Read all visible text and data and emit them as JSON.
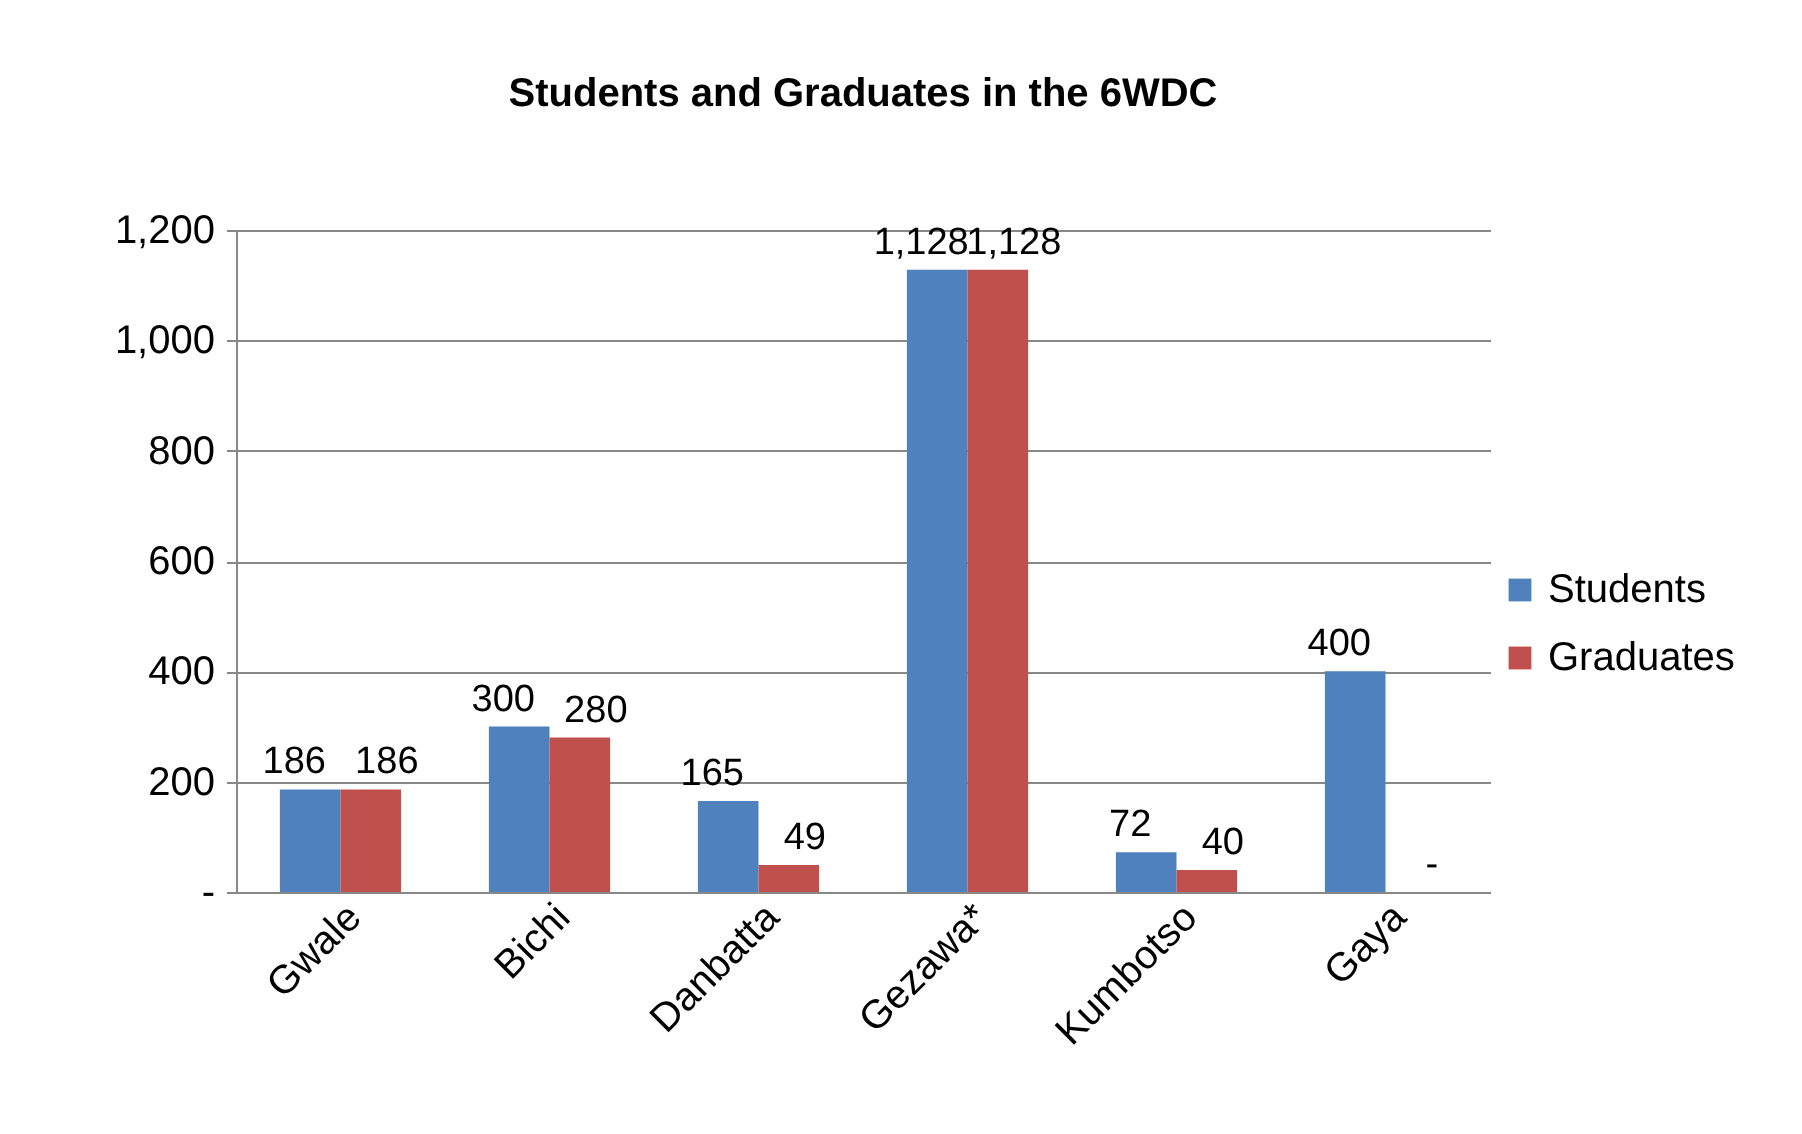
{
  "chart_data": {
    "type": "bar",
    "title": "Students and Graduates in the 6WDC",
    "categories": [
      "Gwale",
      "Bichi",
      "Danbatta",
      "Gezawa*",
      "Kumbotso",
      "Gaya"
    ],
    "series": [
      {
        "name": "Students",
        "color": "#4f81bd",
        "values": [
          186,
          300,
          165,
          1128,
          72,
          400
        ],
        "value_labels": [
          "186",
          "300",
          "165",
          "1,128",
          "72",
          "400"
        ]
      },
      {
        "name": "Graduates",
        "color": "#c0504d",
        "values": [
          186,
          280,
          49,
          1128,
          40,
          0
        ],
        "value_labels": [
          "186",
          "280",
          "49",
          "1,128",
          "40",
          "-"
        ]
      }
    ],
    "ylim": [
      0,
      1200
    ],
    "yticks": [
      {
        "value": 0,
        "label": "-"
      },
      200,
      400,
      600,
      800,
      {
        "value": 1000,
        "label": "1,000"
      },
      {
        "value": 1200,
        "label": "1,200"
      }
    ],
    "grid": "y",
    "legend": "right"
  }
}
